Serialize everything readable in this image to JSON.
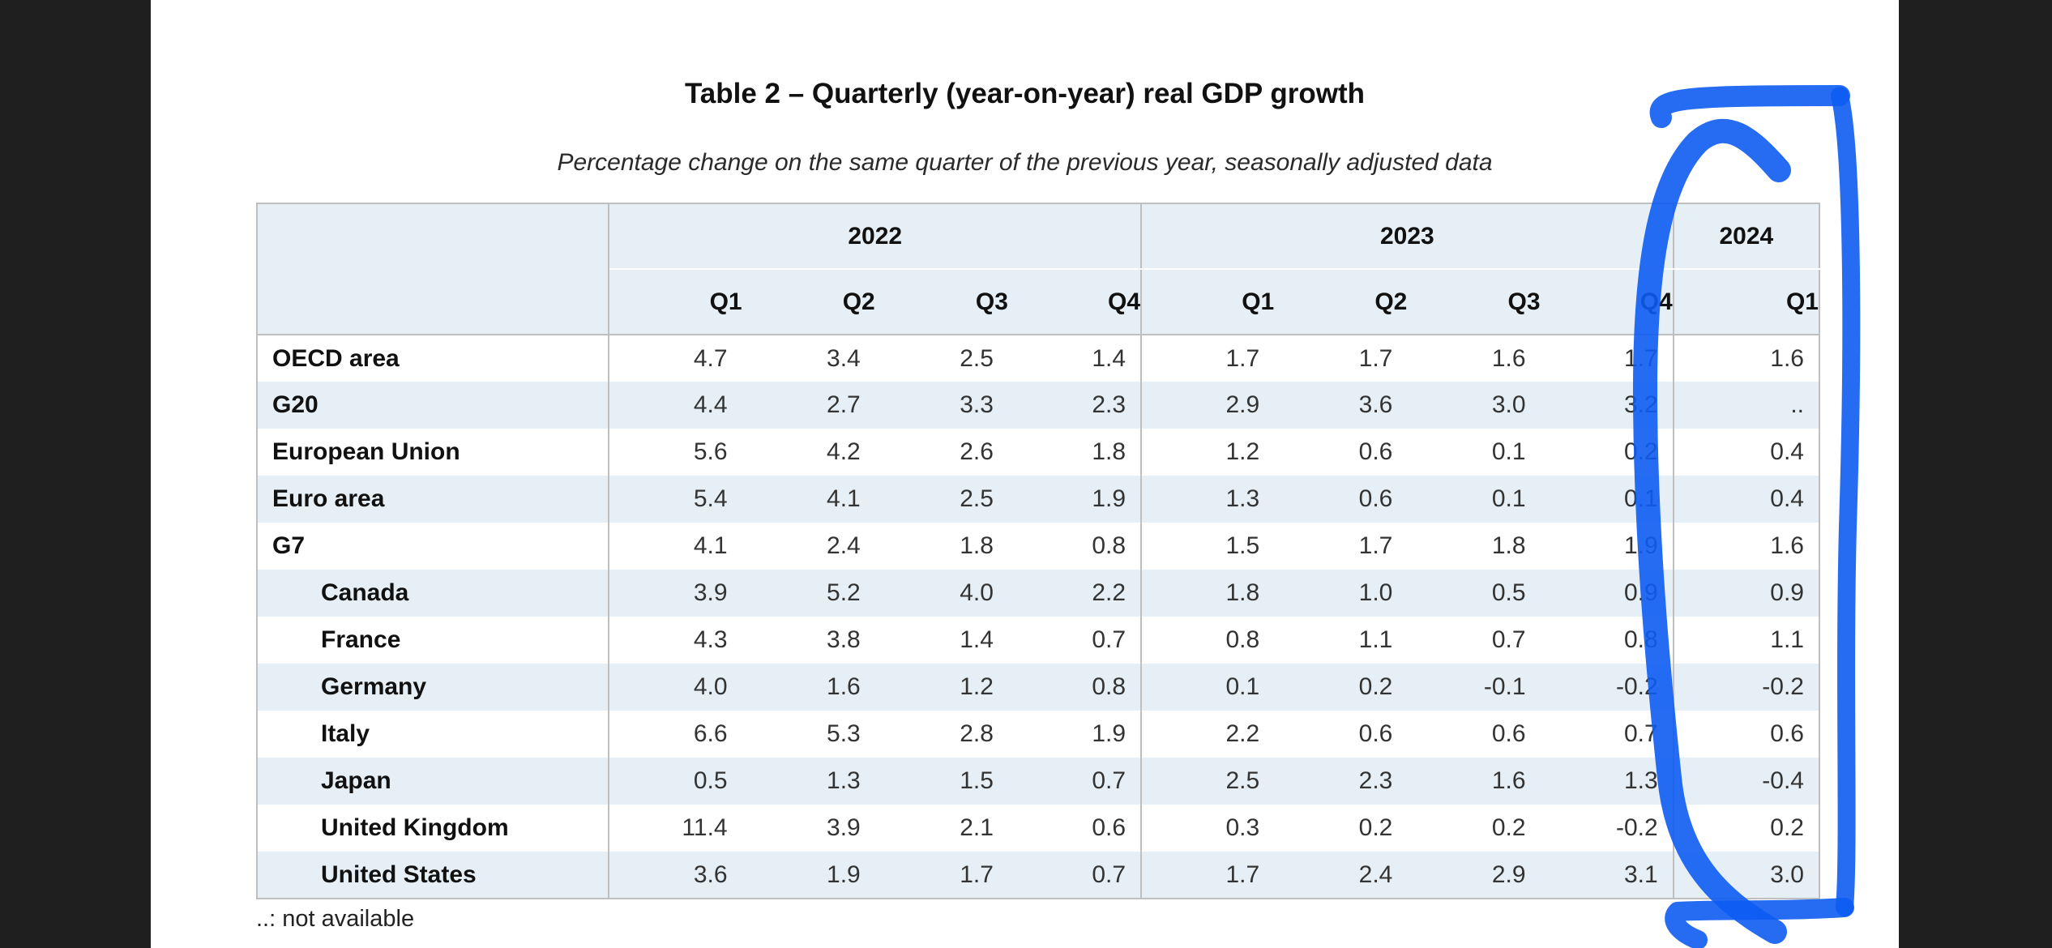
{
  "title": "Table 2 – Quarterly (year-on-year) real GDP growth",
  "subtitle": "Percentage change on the same quarter of the previous year, seasonally adjusted data",
  "years": [
    "2022",
    "2023",
    "2024"
  ],
  "quarters": [
    "Q1",
    "Q2",
    "Q3",
    "Q4",
    "Q1",
    "Q2",
    "Q3",
    "Q4",
    "Q1"
  ],
  "rows": [
    {
      "name": "OECD area",
      "values": [
        "4.7",
        "3.4",
        "2.5",
        "1.4",
        "1.7",
        "1.7",
        "1.6",
        "1.7",
        "1.6"
      ]
    },
    {
      "name": "G20",
      "values": [
        "4.4",
        "2.7",
        "3.3",
        "2.3",
        "2.9",
        "3.6",
        "3.0",
        "3.2",
        ".."
      ]
    },
    {
      "name": "European Union",
      "values": [
        "5.6",
        "4.2",
        "2.6",
        "1.8",
        "1.2",
        "0.6",
        "0.1",
        "0.2",
        "0.4"
      ]
    },
    {
      "name": "Euro area",
      "values": [
        "5.4",
        "4.1",
        "2.5",
        "1.9",
        "1.3",
        "0.6",
        "0.1",
        "0.1",
        "0.4"
      ]
    },
    {
      "name": "G7",
      "values": [
        "4.1",
        "2.4",
        "1.8",
        "0.8",
        "1.5",
        "1.7",
        "1.8",
        "1.9",
        "1.6"
      ]
    },
    {
      "name": "Canada",
      "values": [
        "3.9",
        "5.2",
        "4.0",
        "2.2",
        "1.8",
        "1.0",
        "0.5",
        "0.9",
        "0.9"
      ]
    },
    {
      "name": "France",
      "values": [
        "4.3",
        "3.8",
        "1.4",
        "0.7",
        "0.8",
        "1.1",
        "0.7",
        "0.8",
        "1.1"
      ]
    },
    {
      "name": "Germany",
      "values": [
        "4.0",
        "1.6",
        "1.2",
        "0.8",
        "0.1",
        "0.2",
        "-0.1",
        "-0.2",
        "-0.2"
      ]
    },
    {
      "name": "Italy",
      "values": [
        "6.6",
        "5.3",
        "2.8",
        "1.9",
        "2.2",
        "0.6",
        "0.6",
        "0.7",
        "0.6"
      ]
    },
    {
      "name": "Japan",
      "values": [
        "0.5",
        "1.3",
        "1.5",
        "0.7",
        "2.5",
        "2.3",
        "1.6",
        "1.3",
        "-0.4"
      ]
    },
    {
      "name": "United Kingdom",
      "values": [
        "11.4",
        "3.9",
        "2.1",
        "0.6",
        "0.3",
        "0.2",
        "0.2",
        "-0.2",
        "0.2"
      ]
    },
    {
      "name": "United States",
      "values": [
        "3.6",
        "1.9",
        "1.7",
        "0.7",
        "1.7",
        "2.4",
        "2.9",
        "3.1",
        "3.0"
      ]
    }
  ],
  "indented_rows": [
    "Canada",
    "France",
    "Germany",
    "Italy",
    "Japan",
    "United Kingdom",
    "United States"
  ],
  "footnote": "..: not available",
  "annotation_color": "#0d5cf2"
}
